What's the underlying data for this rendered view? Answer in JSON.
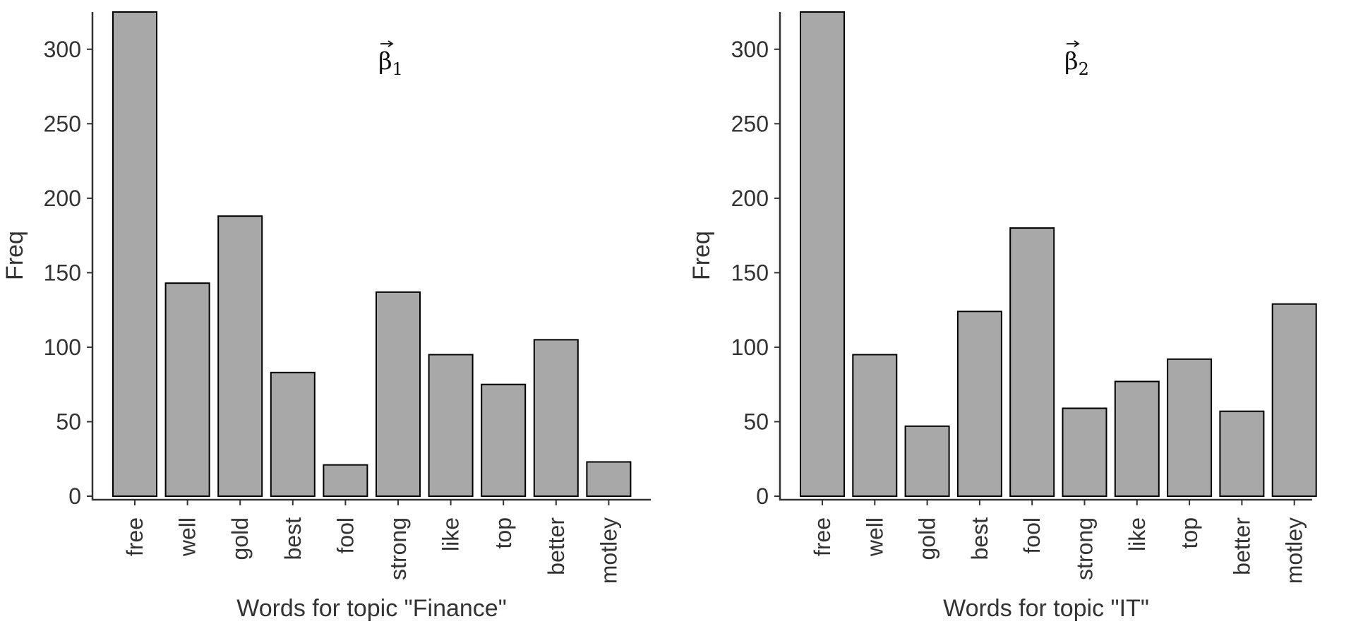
{
  "chart_data": [
    {
      "type": "bar",
      "title": "β1",
      "annotation": {
        "symbol": "β",
        "subscript": "1"
      },
      "categories": [
        "free",
        "well",
        "gold",
        "best",
        "fool",
        "strong",
        "like",
        "top",
        "better",
        "motley"
      ],
      "values": [
        325,
        143,
        188,
        83,
        21,
        137,
        95,
        75,
        105,
        23
      ],
      "xlabel": "Words for topic \"Finance\"",
      "ylabel": "Freq",
      "ylim": [
        0,
        325
      ],
      "yticks": [
        0,
        50,
        100,
        150,
        200,
        250,
        300
      ],
      "grid": false,
      "bar_color": "#a8a8a8",
      "bar_outline": "#000000"
    },
    {
      "type": "bar",
      "title": "β2",
      "annotation": {
        "symbol": "β",
        "subscript": "2"
      },
      "categories": [
        "free",
        "well",
        "gold",
        "best",
        "fool",
        "strong",
        "like",
        "top",
        "better",
        "motley"
      ],
      "values": [
        325,
        95,
        47,
        124,
        180,
        59,
        77,
        92,
        57,
        129
      ],
      "xlabel": "Words for topic \"IT\"",
      "ylabel": "Freq",
      "ylim": [
        0,
        325
      ],
      "yticks": [
        0,
        50,
        100,
        150,
        200,
        250,
        300
      ],
      "grid": false,
      "bar_color": "#a8a8a8",
      "bar_outline": "#000000"
    }
  ]
}
